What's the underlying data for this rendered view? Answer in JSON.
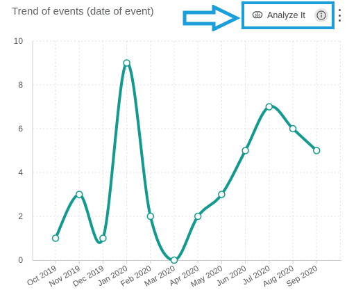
{
  "header": {
    "title": "Trend of events (date of event)",
    "analyze_label": "Analyze It",
    "analyze_icon": "brain-icon",
    "info_icon": "info-icon",
    "more_icon": "kebab-icon"
  },
  "colors": {
    "line": "#139a8e",
    "highlight": "#1a9fdb",
    "grid": "#e0e0e0",
    "axis_text": "#555555"
  },
  "chart_data": {
    "type": "line",
    "title": "Trend of events (date of event)",
    "xlabel": "",
    "ylabel": "",
    "categories": [
      "Oct 2019",
      "Nov 2019",
      "Dec 2019",
      "Jan 2020",
      "Feb 2020",
      "Mar 2020",
      "Apr 2020",
      "May 2020",
      "Jun 2020",
      "Jul 2020",
      "Aug 2020",
      "Sep 2020"
    ],
    "values": [
      1,
      3,
      1,
      9,
      2,
      0,
      2,
      3,
      5,
      7,
      6,
      5
    ],
    "ylim": [
      0,
      10
    ],
    "yticks": [
      0,
      2,
      4,
      6,
      8,
      10
    ],
    "grid": true,
    "smooth": true,
    "legend": "none"
  }
}
